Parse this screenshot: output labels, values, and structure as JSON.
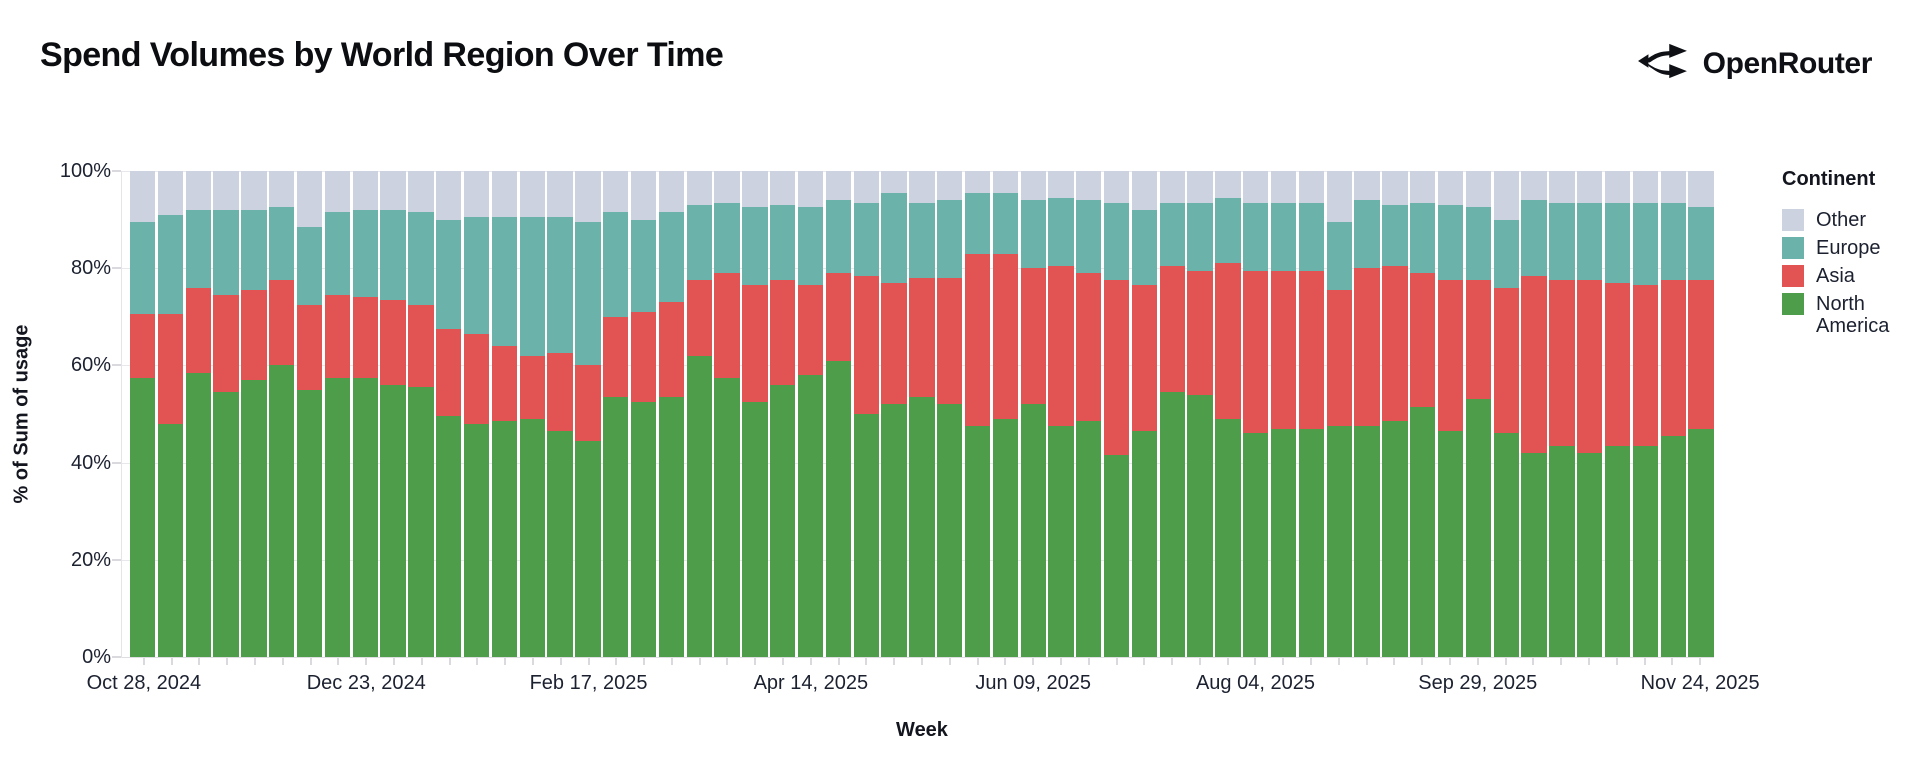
{
  "header": {
    "title": "Spend Volumes by World Region Over Time",
    "brand": "OpenRouter"
  },
  "colors": {
    "north_america": "#4d9d4b",
    "asia": "#e15453",
    "europe": "#6bb3aa",
    "other": "#cdd2e0",
    "grid": "#e8e8ec",
    "tick": "#d9d9de",
    "axis_text": "#1c2130"
  },
  "y_axis": {
    "title": "% of Sum of usage",
    "ticks": [
      "100%",
      "80%",
      "60%",
      "40%",
      "20%",
      "0%"
    ]
  },
  "x_axis": {
    "title": "Week",
    "visible_tick_indices": [
      0,
      8,
      16,
      24,
      32,
      40,
      48,
      56
    ],
    "visible_tick_labels": [
      "Oct 28, 2024",
      "Dec 23, 2024",
      "Feb 17, 2025",
      "Apr 14, 2025",
      "Jun 09, 2025",
      "Aug 04, 2025",
      "Sep 29, 2025",
      "Nov 24, 2025"
    ]
  },
  "legend": {
    "title": "Continent",
    "items": [
      {
        "label": "Other",
        "color_key": "other"
      },
      {
        "label": "Europe",
        "color_key": "europe"
      },
      {
        "label": "Asia",
        "color_key": "asia"
      },
      {
        "label": "North America",
        "color_key": "north_america"
      }
    ]
  },
  "chart_data": {
    "type": "bar",
    "stacked": true,
    "normalized_percent": true,
    "title": "Spend Volumes by World Region Over Time",
    "xlabel": "Week",
    "ylabel": "% of Sum of usage",
    "ylim": [
      0,
      100
    ],
    "grid": true,
    "legend_position": "right",
    "stack_order_bottom_to_top": [
      "North America",
      "Asia",
      "Europe",
      "Other"
    ],
    "x": [
      "Oct 28, 2024",
      "Nov 04, 2024",
      "Nov 11, 2024",
      "Nov 18, 2024",
      "Nov 25, 2024",
      "Dec 02, 2024",
      "Dec 09, 2024",
      "Dec 16, 2024",
      "Dec 23, 2024",
      "Dec 30, 2024",
      "Jan 06, 2025",
      "Jan 13, 2025",
      "Jan 20, 2025",
      "Jan 27, 2025",
      "Feb 03, 2025",
      "Feb 10, 2025",
      "Feb 17, 2025",
      "Feb 24, 2025",
      "Mar 03, 2025",
      "Mar 10, 2025",
      "Mar 17, 2025",
      "Mar 24, 2025",
      "Mar 31, 2025",
      "Apr 07, 2025",
      "Apr 14, 2025",
      "Apr 21, 2025",
      "Apr 28, 2025",
      "May 05, 2025",
      "May 12, 2025",
      "May 19, 2025",
      "May 26, 2025",
      "Jun 02, 2025",
      "Jun 09, 2025",
      "Jun 16, 2025",
      "Jun 23, 2025",
      "Jun 30, 2025",
      "Jul 07, 2025",
      "Jul 14, 2025",
      "Jul 21, 2025",
      "Jul 28, 2025",
      "Aug 04, 2025",
      "Aug 11, 2025",
      "Aug 18, 2025",
      "Aug 25, 2025",
      "Sep 01, 2025",
      "Sep 08, 2025",
      "Sep 15, 2025",
      "Sep 22, 2025",
      "Sep 29, 2025",
      "Oct 06, 2025",
      "Oct 13, 2025",
      "Oct 20, 2025",
      "Oct 27, 2025",
      "Nov 03, 2025",
      "Nov 10, 2025",
      "Nov 17, 2025",
      "Nov 24, 2025"
    ],
    "series": [
      {
        "name": "North America",
        "color_key": "north_america",
        "values": [
          57.5,
          48,
          58.5,
          54.5,
          57,
          60,
          55,
          57.5,
          57.5,
          56,
          55.5,
          49.5,
          48,
          48.5,
          49,
          46.5,
          44.5,
          53.5,
          52.5,
          53.5,
          62,
          57.5,
          52.5,
          56,
          58,
          61,
          50,
          52,
          53.5,
          52,
          47.5,
          49,
          52,
          47.5,
          48.5,
          41.5,
          46.5,
          54.5,
          54,
          49,
          46,
          47,
          47,
          47.5,
          47.5,
          48.5,
          51.5,
          46.5,
          53,
          46,
          42,
          43.5,
          42,
          43.5,
          43.5,
          45.5,
          47
        ]
      },
      {
        "name": "Asia",
        "color_key": "asia",
        "values": [
          13,
          22.5,
          17.5,
          20,
          18.5,
          17.5,
          17.5,
          17,
          16.5,
          17.5,
          17,
          18,
          18.5,
          15.5,
          13,
          16,
          15.5,
          16.5,
          18.5,
          19.5,
          15.5,
          21.5,
          24,
          21.5,
          18.5,
          18,
          28.5,
          25,
          24.5,
          26,
          35.5,
          34,
          28,
          33,
          30.5,
          36,
          30,
          26,
          25.5,
          32,
          33.5,
          32.5,
          32.5,
          28,
          32.5,
          32,
          27.5,
          31,
          24.5,
          30,
          36.5,
          34,
          35.5,
          33.5,
          33,
          32,
          30.5
        ]
      },
      {
        "name": "Europe",
        "color_key": "europe",
        "values": [
          19,
          20.5,
          16,
          17.5,
          16.5,
          15,
          16,
          17,
          18,
          18.5,
          19,
          22.5,
          24,
          26.5,
          28.5,
          28,
          29.5,
          21.5,
          19,
          18.5,
          15.5,
          14.5,
          16,
          15.5,
          16,
          15,
          15,
          18.5,
          15.5,
          16,
          12.5,
          12.5,
          14,
          14,
          15,
          16,
          15.5,
          13,
          14,
          13.5,
          14,
          14,
          14,
          14,
          14,
          12.5,
          14.5,
          15.5,
          15,
          14,
          15.5,
          16,
          16,
          16.5,
          17,
          16,
          15
        ]
      },
      {
        "name": "Other",
        "color_key": "other",
        "values": [
          10.5,
          9,
          8,
          8,
          8,
          7.5,
          11.5,
          8.5,
          8,
          8,
          8.5,
          10,
          9.5,
          9.5,
          9.5,
          9.5,
          10.5,
          8.5,
          10,
          8.5,
          7,
          6.5,
          7.5,
          7,
          7.5,
          6,
          6.5,
          4.5,
          6.5,
          6,
          4.5,
          4.5,
          6,
          5.5,
          6,
          6.5,
          8,
          6.5,
          6.5,
          5.5,
          6.5,
          6.5,
          6.5,
          10.5,
          6,
          7,
          6.5,
          7,
          7.5,
          10,
          6,
          6.5,
          6.5,
          6.5,
          6.5,
          6.5,
          7.5
        ]
      }
    ]
  }
}
